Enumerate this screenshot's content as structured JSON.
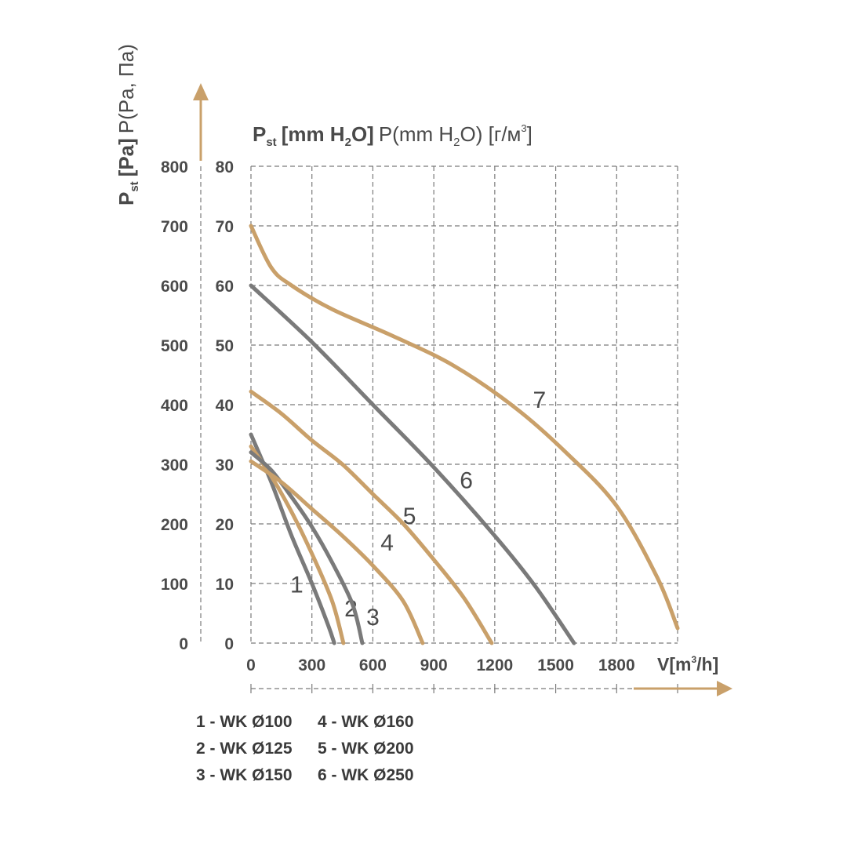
{
  "chart_data": {
    "type": "line",
    "y_axis_title": {
      "main": "P",
      "sub": "st",
      "bracket": "[Pa]",
      "light": "P(Pa, Па)"
    },
    "top_title": {
      "main": "P",
      "sub": "st",
      "bold_part_a": "[mm H",
      "bold_sub": "2",
      "bold_part_b": "O]",
      "light_part_a": "P(mm H",
      "light_sub": "2",
      "light_part_b": "O) [г/м",
      "light_sup": "3",
      "light_part_c": "]"
    },
    "x_axis_label": {
      "part_a": "V[m",
      "sup": "3",
      "part_b": "/h]"
    },
    "x_ticks": [
      0,
      300,
      600,
      900,
      1200,
      1500,
      1800
    ],
    "y_ticks_pa": [
      0,
      100,
      200,
      300,
      400,
      500,
      600,
      700,
      800
    ],
    "y_ticks_mm": [
      0,
      10,
      20,
      30,
      40,
      50,
      60,
      70,
      80
    ],
    "xlim": [
      0,
      2100
    ],
    "ylim": [
      0,
      800
    ],
    "grid": true,
    "colors": {
      "gray": "#7a7a7a",
      "gold": "#c9a06a",
      "grid": "#7a7a7a",
      "text": "#4a4a4a",
      "arrow": "#c9a06a"
    },
    "series": [
      {
        "name": "1",
        "color": "gray",
        "label_at": [
          225,
          85
        ],
        "points": [
          [
            0,
            350
          ],
          [
            100,
            270
          ],
          [
            200,
            180
          ],
          [
            300,
            100
          ],
          [
            380,
            30
          ],
          [
            410,
            0
          ]
        ]
      },
      {
        "name": "2",
        "color": "gold",
        "label_at": [
          492,
          45
        ],
        "points": [
          [
            0,
            330
          ],
          [
            100,
            280
          ],
          [
            200,
            220
          ],
          [
            300,
            150
          ],
          [
            400,
            70
          ],
          [
            455,
            0
          ]
        ]
      },
      {
        "name": "3",
        "color": "gray",
        "label_at": [
          600,
          30
        ],
        "points": [
          [
            0,
            320
          ],
          [
            100,
            290
          ],
          [
            200,
            245
          ],
          [
            300,
            195
          ],
          [
            400,
            135
          ],
          [
            500,
            65
          ],
          [
            548,
            0
          ]
        ]
      },
      {
        "name": "4",
        "color": "gold",
        "label_at": [
          670,
          155
        ],
        "points": [
          [
            0,
            305
          ],
          [
            150,
            270
          ],
          [
            300,
            225
          ],
          [
            450,
            180
          ],
          [
            600,
            130
          ],
          [
            750,
            70
          ],
          [
            845,
            0
          ]
        ]
      },
      {
        "name": "5",
        "color": "gold",
        "label_at": [
          780,
          200
        ],
        "points": [
          [
            0,
            422
          ],
          [
            150,
            385
          ],
          [
            300,
            340
          ],
          [
            450,
            300
          ],
          [
            600,
            250
          ],
          [
            750,
            200
          ],
          [
            900,
            140
          ],
          [
            1050,
            75
          ],
          [
            1185,
            0
          ]
        ]
      },
      {
        "name": "6",
        "color": "gray",
        "label_at": [
          1060,
          260
        ],
        "points": [
          [
            0,
            600
          ],
          [
            300,
            505
          ],
          [
            600,
            400
          ],
          [
            900,
            295
          ],
          [
            1200,
            180
          ],
          [
            1400,
            95
          ],
          [
            1590,
            0
          ]
        ]
      },
      {
        "name": "7",
        "color": "gold",
        "label_at": [
          1420,
          395
        ],
        "points": [
          [
            0,
            700
          ],
          [
            100,
            630
          ],
          [
            200,
            600
          ],
          [
            400,
            560
          ],
          [
            700,
            515
          ],
          [
            1000,
            465
          ],
          [
            1300,
            395
          ],
          [
            1550,
            320
          ],
          [
            1800,
            230
          ],
          [
            2000,
            110
          ],
          [
            2100,
            25
          ]
        ]
      }
    ],
    "legend": [
      {
        "text": "1 - WK Ø100",
        "col": 0,
        "row": 0
      },
      {
        "text": "2 - WK Ø125",
        "col": 0,
        "row": 1
      },
      {
        "text": "3 - WK Ø150",
        "col": 0,
        "row": 2
      },
      {
        "text": "4 - WK Ø160",
        "col": 1,
        "row": 0
      },
      {
        "text": "5 - WK Ø200",
        "col": 1,
        "row": 1
      },
      {
        "text": "6 - WK Ø250",
        "col": 1,
        "row": 2
      }
    ]
  }
}
